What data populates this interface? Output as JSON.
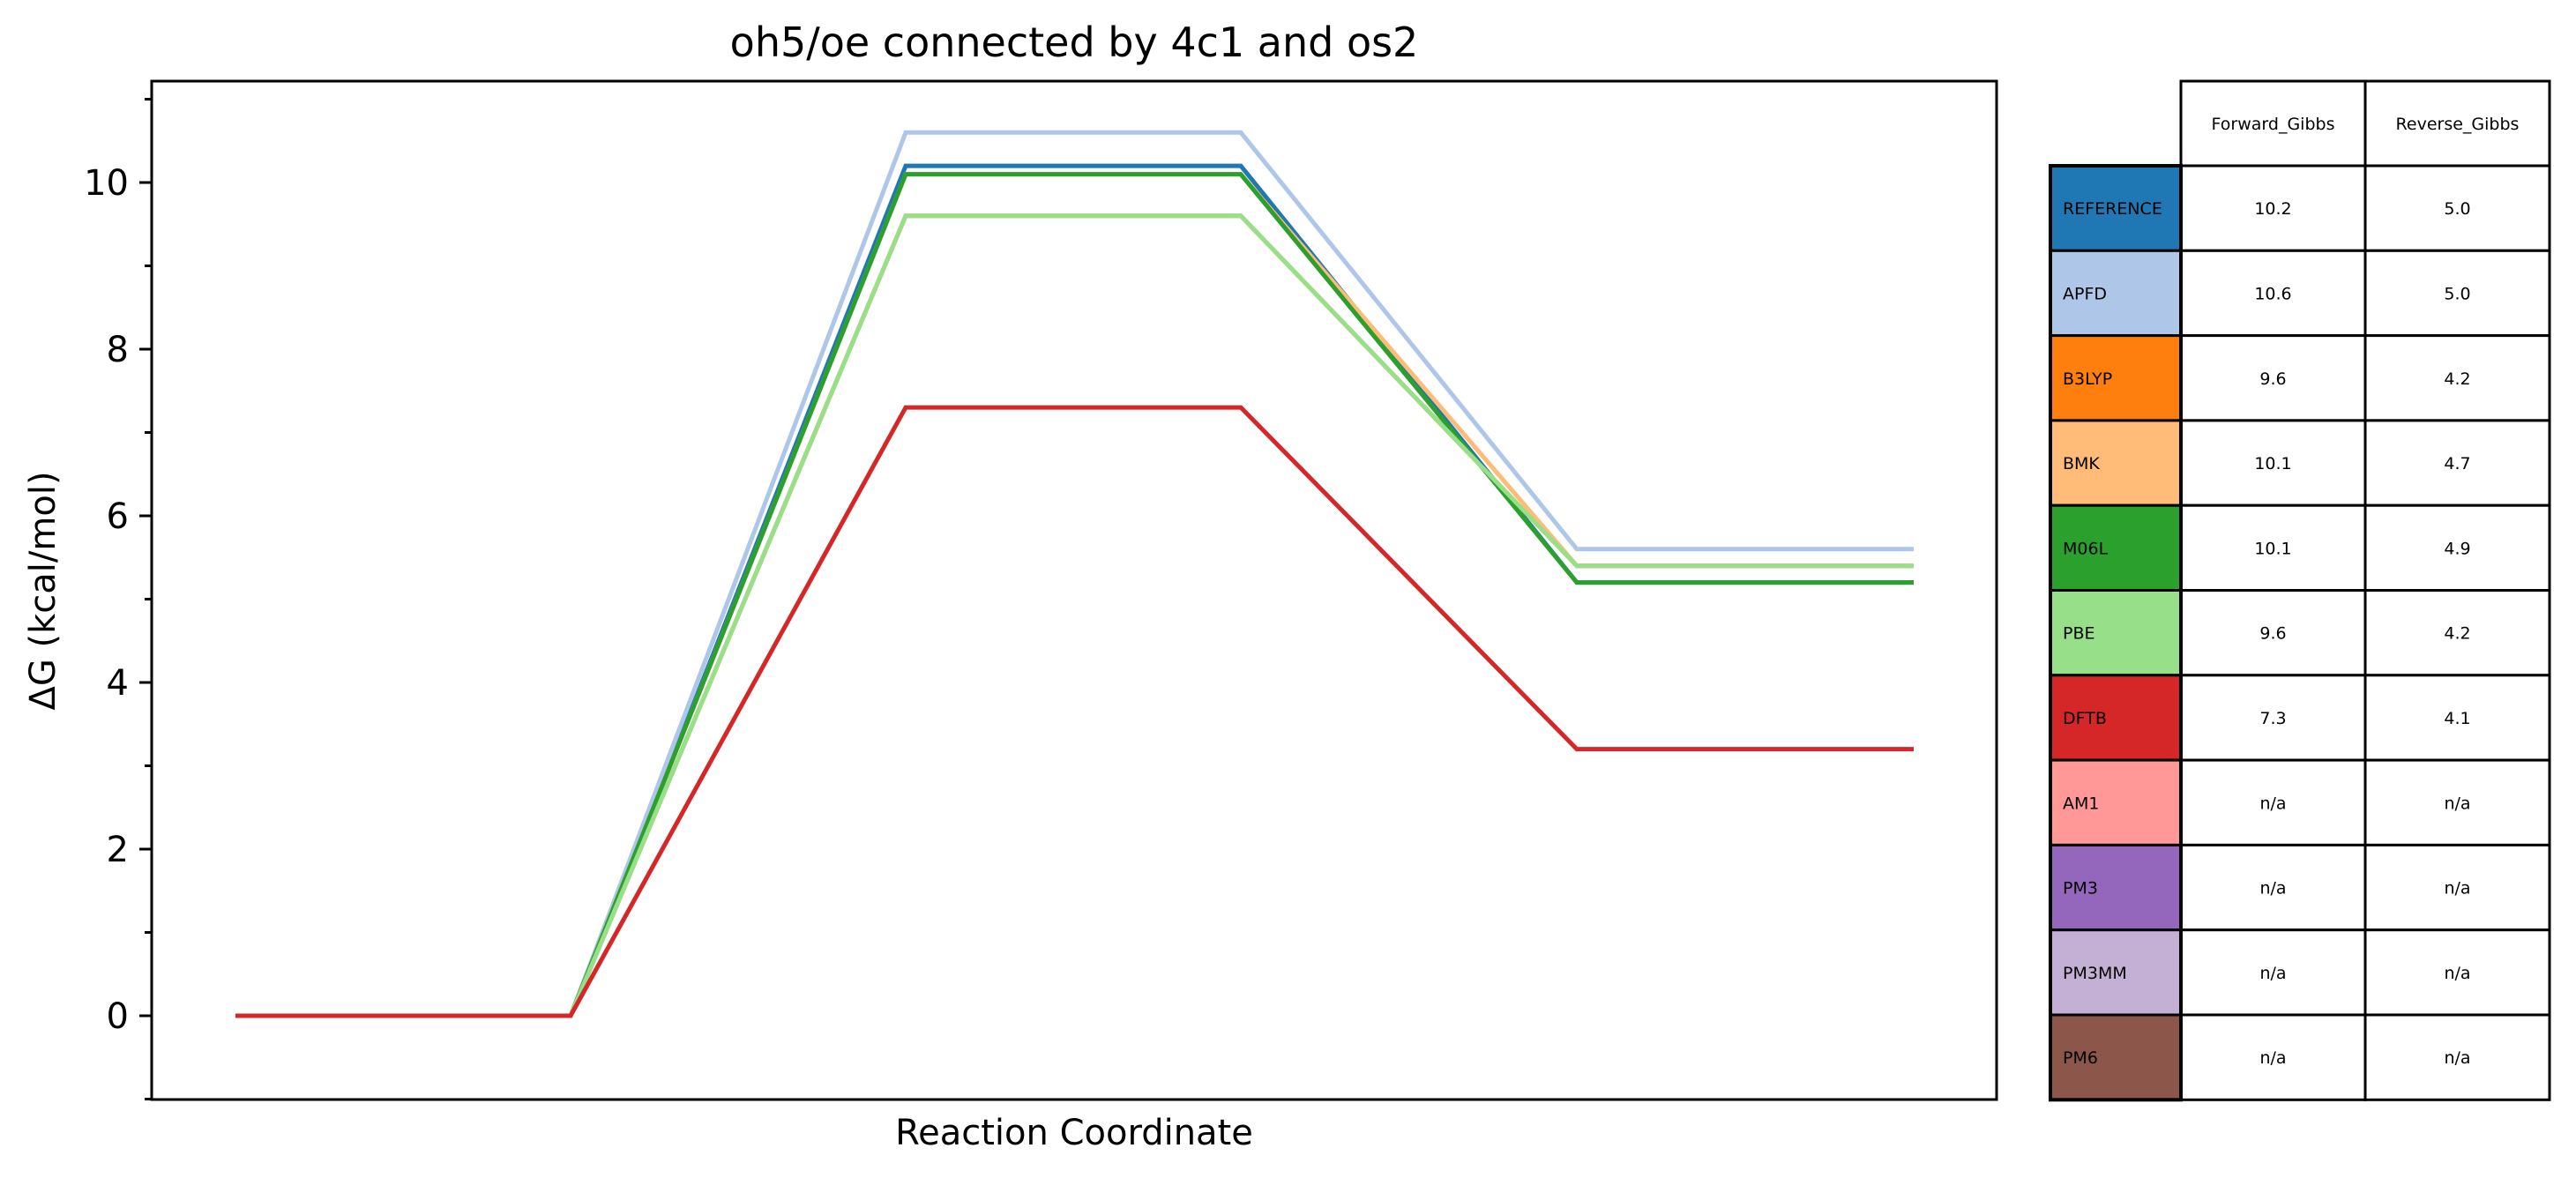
{
  "chart_data": {
    "type": "line",
    "title": "oh5/oe connected by 4c1 and os2",
    "xlabel": "Reaction Coordinate",
    "ylabel": "ΔG (kcal/mol)",
    "ylim": [
      -1,
      11.2
    ],
    "yticks": [
      0,
      2,
      4,
      6,
      8,
      10
    ],
    "grid": false,
    "series": [
      {
        "name": "REFERENCE",
        "color": "#1f77b4",
        "values": [
          0,
          0,
          10.2,
          10.2,
          5.2,
          5.2
        ]
      },
      {
        "name": "APFD",
        "color": "#aec7e8",
        "values": [
          0,
          0,
          10.6,
          10.6,
          5.6,
          5.6
        ]
      },
      {
        "name": "B3LYP",
        "color": "#ff7f0e",
        "values": [
          0,
          0,
          9.6,
          9.6,
          5.4,
          5.4
        ]
      },
      {
        "name": "BMK",
        "color": "#ffbb78",
        "values": [
          0,
          0,
          10.1,
          10.1,
          5.4,
          5.4
        ]
      },
      {
        "name": "M06L",
        "color": "#2ca02c",
        "values": [
          0,
          0,
          10.1,
          10.1,
          5.2,
          5.2
        ]
      },
      {
        "name": "PBE",
        "color": "#98df8a",
        "values": [
          0,
          0,
          9.6,
          9.6,
          5.4,
          5.4
        ]
      },
      {
        "name": "DFTB",
        "color": "#d62728",
        "values": [
          0,
          0,
          7.3,
          7.3,
          3.2,
          3.2
        ]
      }
    ],
    "table": {
      "columns": [
        "Forward_Gibbs",
        "Reverse_Gibbs"
      ],
      "rows": [
        {
          "label": "REFERENCE",
          "color": "#1f77b4",
          "forward": "10.2",
          "reverse": "5.0"
        },
        {
          "label": "APFD",
          "color": "#aec7e8",
          "forward": "10.6",
          "reverse": "5.0"
        },
        {
          "label": "B3LYP",
          "color": "#ff7f0e",
          "forward": "9.6",
          "reverse": "4.2"
        },
        {
          "label": "BMK",
          "color": "#ffbb78",
          "forward": "10.1",
          "reverse": "4.7"
        },
        {
          "label": "M06L",
          "color": "#2ca02c",
          "forward": "10.1",
          "reverse": "4.9"
        },
        {
          "label": "PBE",
          "color": "#98df8a",
          "forward": "9.6",
          "reverse": "4.2"
        },
        {
          "label": "DFTB",
          "color": "#d62728",
          "forward": "7.3",
          "reverse": "4.1"
        },
        {
          "label": "AM1",
          "color": "#ff9896",
          "forward": "n/a",
          "reverse": "n/a"
        },
        {
          "label": "PM3",
          "color": "#9467bd",
          "forward": "n/a",
          "reverse": "n/a"
        },
        {
          "label": "PM3MM",
          "color": "#c5b0d5",
          "forward": "n/a",
          "reverse": "n/a"
        },
        {
          "label": "PM6",
          "color": "#8c564b",
          "forward": "n/a",
          "reverse": "n/a"
        }
      ]
    }
  }
}
